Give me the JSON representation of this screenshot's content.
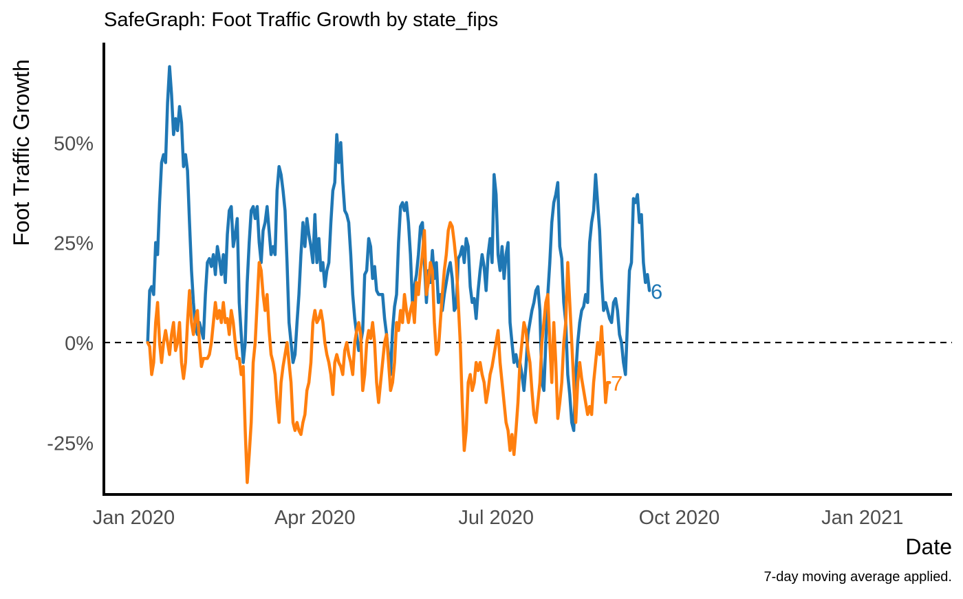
{
  "chart_data": {
    "type": "line",
    "title": "SafeGraph: Foot Traffic Growth by state_fips",
    "xlabel": "Date",
    "ylabel": "Foot Traffic Growth",
    "caption": "7-day moving average applied.",
    "x_ticks": [
      "Jan 2020",
      "Apr 2020",
      "Jul 2020",
      "Oct 2020",
      "Jan 2021"
    ],
    "y_ticks": [
      "50%",
      "25%",
      "0%",
      "-25%"
    ],
    "xlim": [
      "2019-12-17",
      "2021-02-15"
    ],
    "ylim": [
      -0.38,
      0.75
    ],
    "reference_line": 0,
    "series": [
      {
        "name": "6",
        "color": "#1f77b4",
        "start": "2020-01-08",
        "step_days": 1,
        "values": [
          0.0,
          0.13,
          0.14,
          0.12,
          0.25,
          0.22,
          0.35,
          0.45,
          0.47,
          0.45,
          0.6,
          0.69,
          0.62,
          0.52,
          0.56,
          0.53,
          0.59,
          0.55,
          0.44,
          0.47,
          0.43,
          0.3,
          0.18,
          0.1,
          0.04,
          0.02,
          0.05,
          0.03,
          0.01,
          0.12,
          0.2,
          0.21,
          0.19,
          0.22,
          0.17,
          0.24,
          0.21,
          0.17,
          0.22,
          0.15,
          0.27,
          0.33,
          0.34,
          0.24,
          0.27,
          0.31,
          0.1,
          0.02,
          -0.05,
          0.0,
          0.15,
          0.25,
          0.33,
          0.34,
          0.31,
          0.34,
          0.25,
          0.2,
          0.28,
          0.3,
          0.34,
          0.28,
          0.22,
          0.24,
          0.22,
          0.38,
          0.44,
          0.42,
          0.38,
          0.33,
          0.2,
          0.05,
          0.0,
          -0.05,
          -0.03,
          0.05,
          0.12,
          0.22,
          0.3,
          0.24,
          0.31,
          0.27,
          0.24,
          0.2,
          0.32,
          0.2,
          0.26,
          0.18,
          0.2,
          0.14,
          0.18,
          0.2,
          0.3,
          0.38,
          0.4,
          0.52,
          0.45,
          0.5,
          0.4,
          0.33,
          0.32,
          0.3,
          0.22,
          0.12,
          0.06,
          0.02,
          -0.02,
          0.0,
          0.03,
          0.17,
          0.18,
          0.26,
          0.24,
          0.16,
          0.19,
          0.13,
          0.12,
          0.12,
          0.12,
          0.06,
          0.02,
          -0.03,
          -0.08,
          0.03,
          0.09,
          0.12,
          0.25,
          0.34,
          0.35,
          0.33,
          0.35,
          0.3,
          0.22,
          0.1,
          0.14,
          0.17,
          0.22,
          0.29,
          0.3,
          0.2,
          0.1,
          0.18,
          0.15,
          0.23,
          0.16,
          0.2,
          0.1,
          0.12,
          0.08,
          0.12,
          0.15,
          0.18,
          0.2,
          0.16,
          0.08,
          0.09,
          0.21,
          0.22,
          0.24,
          0.2,
          0.26,
          0.24,
          0.14,
          0.1,
          0.11,
          0.06,
          0.13,
          0.18,
          0.22,
          0.19,
          0.13,
          0.22,
          0.26,
          0.2,
          0.42,
          0.37,
          0.22,
          0.18,
          0.24,
          0.16,
          0.22,
          0.25,
          0.05,
          0.0,
          -0.05,
          -0.03,
          -0.06,
          -0.05,
          -0.08,
          -0.12,
          -0.06,
          0.02,
          0.05,
          0.08,
          0.1,
          0.13,
          0.14,
          0.08,
          -0.1,
          -0.12,
          0.0,
          0.12,
          0.2,
          0.3,
          0.35,
          0.37,
          0.4,
          0.24,
          0.21,
          0.1,
          0.05,
          -0.08,
          -0.13,
          -0.2,
          -0.22,
          -0.08,
          0.0,
          0.05,
          0.08,
          0.09,
          0.12,
          0.1,
          0.25,
          0.3,
          0.33,
          0.42,
          0.35,
          0.28,
          0.16,
          0.08,
          0.1,
          0.08,
          0.06,
          0.05,
          0.1,
          0.11,
          0.08,
          0.02,
          0.0,
          -0.05,
          -0.08,
          0.05,
          0.18,
          0.2,
          0.36,
          0.35,
          0.37,
          0.3,
          0.32,
          0.2,
          0.15,
          0.17,
          0.13
        ]
      },
      {
        "name": "7",
        "color": "#ff7f0e",
        "start": "2020-01-08",
        "step_days": 1,
        "values": [
          0.0,
          -0.01,
          -0.08,
          -0.05,
          0.05,
          0.1,
          0.0,
          -0.05,
          0.0,
          0.03,
          0.0,
          -0.03,
          0.02,
          0.05,
          -0.02,
          0.0,
          0.05,
          -0.05,
          -0.09,
          -0.05,
          0.05,
          0.13,
          0.05,
          0.02,
          0.06,
          0.08,
          0.0,
          -0.06,
          -0.04,
          -0.04,
          -0.04,
          -0.03,
          0.0,
          0.05,
          0.1,
          0.06,
          0.08,
          0.05,
          0.1,
          0.05,
          0.06,
          0.02,
          0.08,
          0.05,
          0.0,
          -0.04,
          -0.04,
          -0.08,
          -0.06,
          -0.22,
          -0.35,
          -0.28,
          -0.2,
          -0.05,
          0.0,
          0.1,
          0.2,
          0.18,
          0.12,
          0.08,
          0.12,
          0.03,
          -0.03,
          -0.05,
          -0.08,
          -0.15,
          -0.2,
          -0.1,
          -0.06,
          -0.03,
          0.0,
          -0.05,
          -0.1,
          -0.2,
          -0.22,
          -0.2,
          -0.22,
          -0.23,
          -0.2,
          -0.18,
          -0.12,
          -0.1,
          -0.05,
          0.05,
          0.08,
          0.05,
          0.06,
          0.08,
          0.05,
          0.0,
          -0.03,
          -0.05,
          -0.08,
          -0.13,
          -0.05,
          -0.03,
          -0.05,
          -0.06,
          -0.08,
          -0.02,
          0.0,
          -0.03,
          -0.05,
          -0.08,
          0.0,
          0.03,
          0.05,
          0.02,
          -0.12,
          -0.08,
          0.0,
          0.03,
          0.01,
          0.05,
          0.0,
          -0.1,
          -0.15,
          -0.1,
          -0.05,
          0.0,
          0.02,
          -0.05,
          -0.12,
          -0.1,
          -0.05,
          0.05,
          0.03,
          0.08,
          0.05,
          0.12,
          0.08,
          0.05,
          0.08,
          0.1,
          0.05,
          0.15,
          0.12,
          0.18,
          0.22,
          0.28,
          0.12,
          0.15,
          0.2,
          0.18,
          0.05,
          -0.03,
          -0.02,
          0.05,
          0.12,
          0.18,
          0.22,
          0.28,
          0.3,
          0.29,
          0.25,
          0.2,
          0.1,
          0.0,
          -0.15,
          -0.27,
          -0.22,
          -0.1,
          -0.08,
          -0.12,
          -0.1,
          -0.05,
          -0.07,
          -0.05,
          -0.08,
          -0.1,
          -0.15,
          -0.12,
          -0.08,
          -0.06,
          -0.03,
          0.0,
          0.03,
          -0.05,
          -0.1,
          -0.15,
          -0.2,
          -0.22,
          -0.27,
          -0.23,
          -0.28,
          -0.22,
          -0.15,
          -0.05,
          0.0,
          0.05,
          0.03,
          -0.02,
          -0.05,
          -0.12,
          -0.18,
          -0.2,
          -0.15,
          -0.1,
          0.0,
          0.05,
          0.1,
          0.12,
          0.0,
          -0.1,
          0.05,
          -0.05,
          -0.19,
          -0.15,
          -0.1,
          0.0,
          0.05,
          0.2,
          0.1,
          0.0,
          -0.1,
          -0.2,
          -0.1,
          -0.05,
          -0.09,
          -0.12,
          -0.15,
          -0.18,
          -0.16,
          -0.18,
          -0.1,
          -0.05,
          0.0,
          -0.03,
          0.04,
          -0.05,
          -0.15,
          -0.1,
          -0.1
        ]
      }
    ]
  }
}
